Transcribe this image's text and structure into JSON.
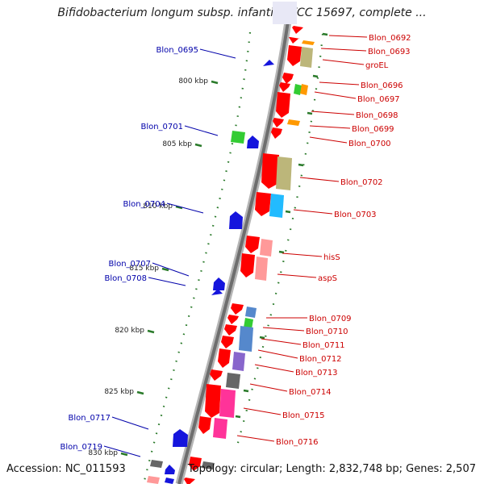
{
  "title": "Bifidobacterium longum subsp. infantis ATCC 15697, complete ...",
  "footer": {
    "accession": "Accession: NC_011593",
    "topology": "Topology: circular; Length: 2,832,748 bp; Genes: 2,507"
  },
  "scale_marks": [
    "800 kbp",
    "805 kbp",
    "810 kbp",
    "815 kbp",
    "820 kbp",
    "825 kbp",
    "830 kbp"
  ],
  "left_genes": [
    "Blon_0695",
    "Blon_0701",
    "Blon_0704",
    "Blon_0707",
    "Blon_0708",
    "Blon_0717",
    "Blon_0719"
  ],
  "right_genes": [
    "Blon_0692",
    "Blon_0693",
    "groEL",
    "Blon_0696",
    "Blon_0697",
    "Blon_0698",
    "Blon_0699",
    "Blon_0700",
    "Blon_0702",
    "Blon_0703",
    "hisS",
    "aspS",
    "Blon_0709",
    "Blon_0710",
    "Blon_0711",
    "Blon_0712",
    "Blon_0713",
    "Blon_0714",
    "Blon_0715",
    "Blon_0716"
  ],
  "colors": {
    "forward_label": "#cc0000",
    "reverse_label": "#0000aa",
    "feature_red": "#ff0000",
    "feature_blue": "#1515dd",
    "backbone": "#888888",
    "tick": "#2a7a2a"
  }
}
